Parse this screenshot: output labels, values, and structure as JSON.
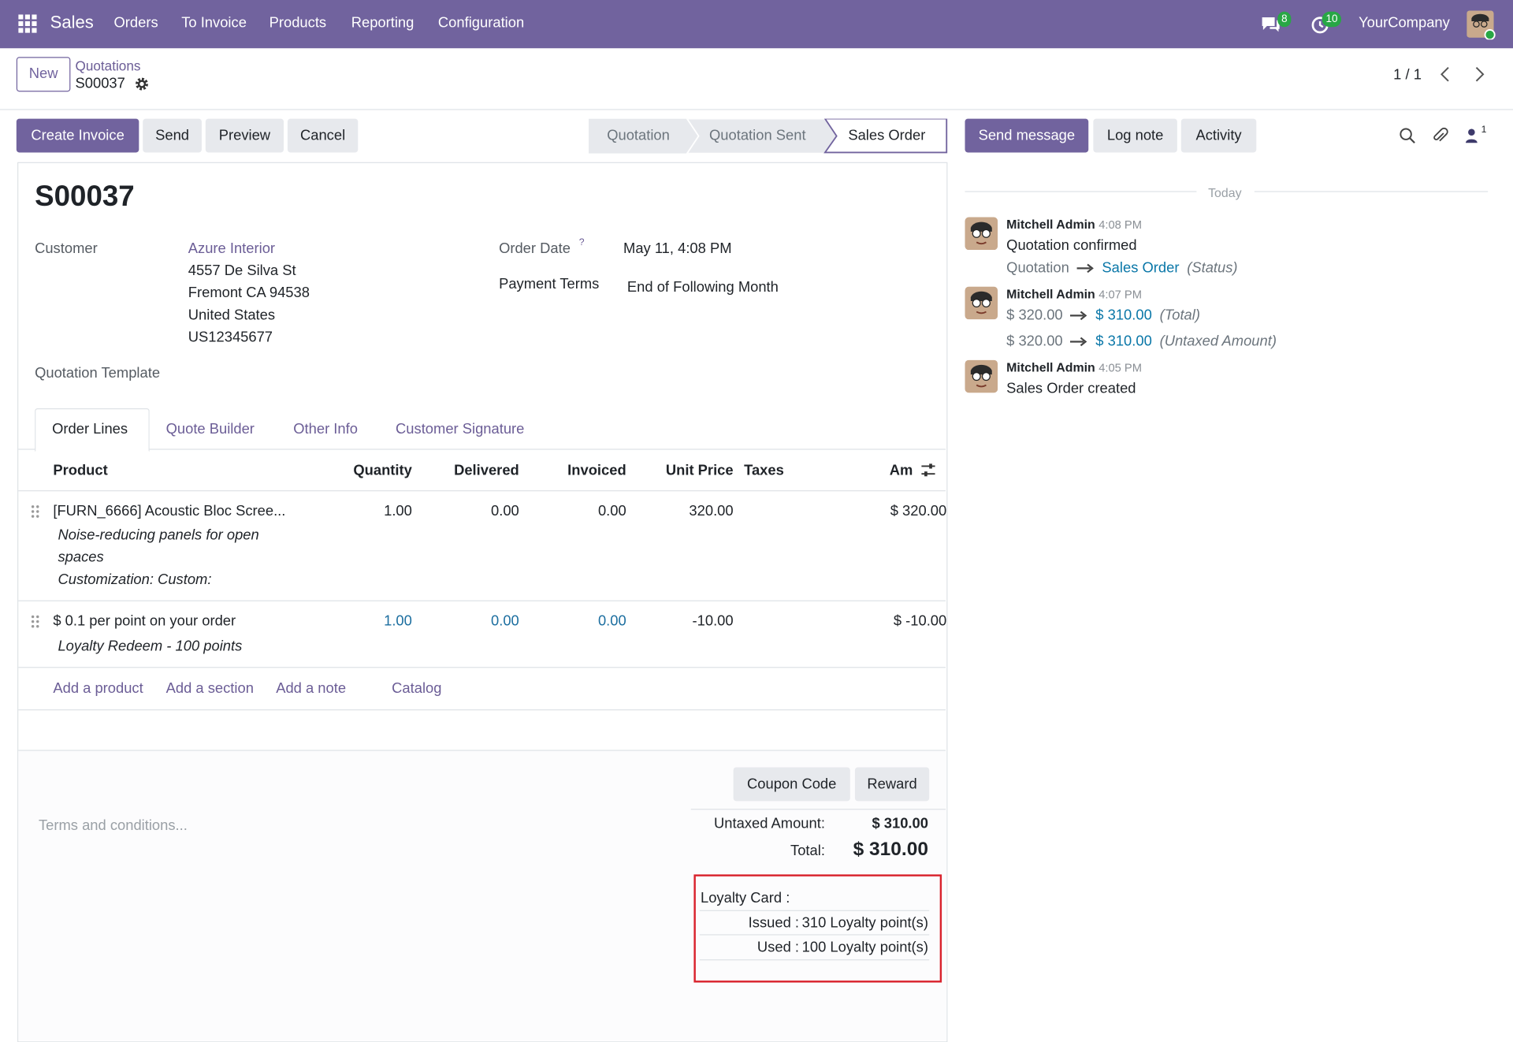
{
  "navbar": {
    "app": "Sales",
    "menu": [
      "Orders",
      "To Invoice",
      "Products",
      "Reporting",
      "Configuration"
    ],
    "message_count": 8,
    "activity_count": 10,
    "company": "YourCompany"
  },
  "control_panel": {
    "new": "New",
    "breadcrumb": "Quotations",
    "record": "S00037",
    "pager": "1 / 1"
  },
  "actions": [
    "Create Invoice",
    "Send",
    "Preview",
    "Cancel"
  ],
  "statusbar": [
    "Quotation",
    "Quotation Sent",
    "Sales Order"
  ],
  "form": {
    "title": "S00037",
    "customer": {
      "label": "Customer",
      "lines": [
        "Azure Interior",
        "4557 De Silva St",
        "Fremont CA 94538",
        "United States",
        "US12345677"
      ]
    },
    "order_date": {
      "label": "Order Date",
      "help": "?",
      "value": "May 11, 4:08 PM"
    },
    "payment_terms": {
      "label": "Payment Terms",
      "value": "End of Following Month"
    },
    "quotation_template": {
      "label": "Quotation Template"
    },
    "tabs": [
      "Order Lines",
      "Quote Builder",
      "Other Info",
      "Customer Signature"
    ],
    "table": {
      "columns": [
        "Product",
        "Quantity",
        "Delivered",
        "Invoiced",
        "Unit Price",
        "Taxes",
        "Am"
      ],
      "rows": [
        {
          "product": "[FURN_6666] Acoustic Bloc Scree...",
          "description": [
            "Noise-reducing panels for open",
            "spaces",
            "Customization: Custom:"
          ],
          "quantity": "1.00",
          "delivered": "0.00",
          "invoiced": "0.00",
          "unit_price": "320.00",
          "amount": "$ 320.00"
        },
        {
          "product": "$ 0.1 per point on your order",
          "description": [
            "Loyalty Redeem - 100 points"
          ],
          "quantity": "1.00",
          "delivered": "0.00",
          "invoiced": "0.00",
          "unit_price": "-10.00",
          "amount": "$ -10.00"
        }
      ],
      "add_links": [
        "Add a product",
        "Add a section",
        "Add a note",
        "Catalog"
      ]
    },
    "buttons": [
      "Coupon Code",
      "Reward"
    ],
    "terms_placeholder": "Terms and conditions...",
    "totals": {
      "untaxed_label": "Untaxed Amount:",
      "untaxed": "$ 310.00",
      "total_label": "Total:",
      "total": "$ 310.00"
    },
    "loyalty": {
      "title": "Loyalty Card :",
      "rows": [
        {
          "label": "Issued :",
          "value": "310 Loyalty point(s)"
        },
        {
          "label": "Used :",
          "value": "100 Loyalty point(s)"
        }
      ]
    }
  },
  "chatter": {
    "buttons": [
      "Send message",
      "Log note",
      "Activity"
    ],
    "followers": 1,
    "date_separator": "Today",
    "messages": [
      {
        "author": "Mitchell Admin",
        "time": "4:08 PM",
        "body": "Quotation confirmed",
        "tracking": [
          {
            "old": "Quotation",
            "new": "Sales Order",
            "field": "(Status)"
          }
        ]
      },
      {
        "author": "Mitchell Admin",
        "time": "4:07 PM",
        "tracking": [
          {
            "old": "$ 320.00",
            "new": "$ 310.00",
            "field": "(Total)"
          },
          {
            "old": "$ 320.00",
            "new": "$ 310.00",
            "field": "(Untaxed Amount)"
          }
        ]
      },
      {
        "author": "Mitchell Admin",
        "time": "4:05 PM",
        "body": "Sales Order created"
      }
    ]
  }
}
